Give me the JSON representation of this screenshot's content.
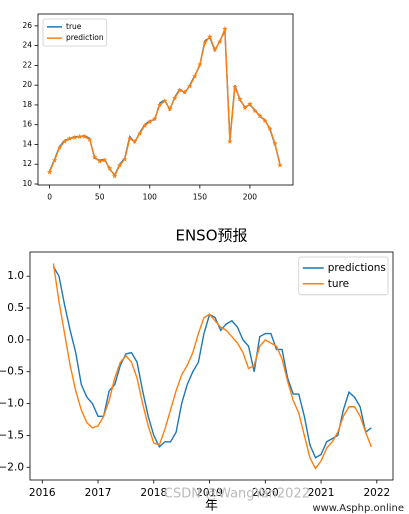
{
  "chart_data": [
    {
      "type": "line",
      "x": [
        0,
        5,
        10,
        15,
        20,
        25,
        30,
        35,
        40,
        45,
        50,
        55,
        60,
        65,
        70,
        75,
        80,
        85,
        90,
        95,
        100,
        105,
        110,
        115,
        120,
        125,
        130,
        135,
        140,
        145,
        150,
        155,
        160,
        165,
        170,
        175,
        180,
        185,
        190,
        195,
        200,
        205,
        210,
        215,
        220,
        225,
        230
      ],
      "series": [
        {
          "name": "true",
          "color": "#1f77b4",
          "values": [
            11.3,
            12.5,
            13.8,
            14.4,
            14.6,
            14.8,
            14.8,
            14.9,
            14.6,
            12.6,
            12.4,
            12.5,
            11.5,
            10.9,
            12.0,
            12.6,
            14.8,
            14.2,
            15.2,
            16.0,
            16.4,
            16.5,
            18.2,
            18.5,
            17.5,
            18.8,
            19.6,
            19.2,
            20.0,
            21.0,
            22.0,
            24.5,
            24.8,
            23.5,
            24.5,
            25.5,
            14.5,
            20.0,
            18.5,
            17.8,
            18.0,
            17.5,
            16.8,
            16.5,
            15.5,
            14.0,
            12.0
          ]
        },
        {
          "name": "prediction",
          "color": "#ff7f0e",
          "marker": "*",
          "values": [
            11.2,
            12.4,
            13.7,
            14.3,
            14.6,
            14.7,
            14.8,
            14.8,
            14.5,
            12.7,
            12.3,
            12.4,
            11.6,
            10.8,
            11.9,
            12.5,
            14.6,
            14.3,
            15.1,
            15.9,
            16.3,
            16.6,
            18.0,
            18.4,
            17.6,
            18.7,
            19.5,
            19.3,
            19.9,
            20.9,
            22.1,
            24.3,
            24.9,
            23.6,
            24.4,
            25.7,
            14.3,
            19.8,
            18.6,
            17.7,
            18.1,
            17.4,
            16.9,
            16.4,
            15.6,
            14.1,
            11.9
          ]
        }
      ],
      "xlim": [
        -11.6,
        243
      ],
      "xticks": [
        0,
        50,
        100,
        150,
        200
      ],
      "ylim": [
        9.9,
        27.2
      ],
      "yticks": [
        10,
        12,
        14,
        16,
        18,
        20,
        22,
        24,
        26
      ],
      "legend": "upper left"
    },
    {
      "type": "line",
      "title": "ENSO预报",
      "x_label": "年",
      "x": [
        2016.2,
        2016.3,
        2016.4,
        2016.5,
        2016.6,
        2016.7,
        2016.8,
        2016.9,
        2017.0,
        2017.1,
        2017.2,
        2017.3,
        2017.4,
        2017.5,
        2017.6,
        2017.7,
        2017.8,
        2017.9,
        2018.0,
        2018.1,
        2018.2,
        2018.3,
        2018.4,
        2018.5,
        2018.6,
        2018.7,
        2018.8,
        2018.9,
        2019.0,
        2019.1,
        2019.2,
        2019.3,
        2019.4,
        2019.5,
        2019.6,
        2019.7,
        2019.8,
        2019.9,
        2020.0,
        2020.1,
        2020.2,
        2020.3,
        2020.4,
        2020.5,
        2020.6,
        2020.7,
        2020.8,
        2020.9,
        2021.0,
        2021.1,
        2021.2,
        2021.3,
        2021.4,
        2021.5,
        2021.6,
        2021.7,
        2021.8,
        2021.9
      ],
      "series": [
        {
          "name": "predictions",
          "color": "#1f77b4",
          "values": [
            1.15,
            1.0,
            0.55,
            0.15,
            -0.2,
            -0.7,
            -0.9,
            -1.0,
            -1.2,
            -1.2,
            -0.8,
            -0.7,
            -0.4,
            -0.22,
            -0.2,
            -0.35,
            -0.8,
            -1.2,
            -1.5,
            -1.68,
            -1.6,
            -1.6,
            -1.45,
            -1.0,
            -0.7,
            -0.5,
            -0.35,
            0.1,
            0.4,
            0.35,
            0.15,
            0.25,
            0.3,
            0.2,
            0.0,
            -0.1,
            -0.5,
            0.05,
            0.1,
            0.1,
            -0.15,
            -0.15,
            -0.6,
            -0.85,
            -0.85,
            -1.2,
            -1.65,
            -1.85,
            -1.8,
            -1.6,
            -1.55,
            -1.5,
            -1.1,
            -0.82,
            -0.9,
            -1.05,
            -1.45,
            -1.38
          ]
        },
        {
          "name": "ture",
          "color": "#ff7f0e",
          "values": [
            1.2,
            0.6,
            0.1,
            -0.4,
            -0.8,
            -1.1,
            -1.3,
            -1.38,
            -1.35,
            -1.2,
            -0.95,
            -0.6,
            -0.35,
            -0.25,
            -0.35,
            -0.6,
            -1.0,
            -1.35,
            -1.62,
            -1.65,
            -1.4,
            -1.1,
            -0.8,
            -0.55,
            -0.4,
            -0.2,
            0.1,
            0.35,
            0.4,
            0.3,
            0.2,
            0.15,
            0.05,
            -0.05,
            -0.2,
            -0.45,
            -0.4,
            -0.1,
            0.0,
            -0.05,
            -0.1,
            -0.3,
            -0.65,
            -0.95,
            -1.15,
            -1.5,
            -1.85,
            -2.02,
            -1.9,
            -1.7,
            -1.6,
            -1.45,
            -1.2,
            -1.05,
            -1.05,
            -1.2,
            -1.45,
            -1.68
          ]
        }
      ],
      "xlim": [
        2015.78,
        2022.29
      ],
      "xticks": [
        2016,
        2017,
        2018,
        2019,
        2020,
        2021,
        2022
      ],
      "ylim": [
        -2.2,
        1.38
      ],
      "yticks": [
        {
          "value": -2,
          "label": "−2.0"
        },
        {
          "value": -1.5,
          "label": "−1.5"
        },
        {
          "value": -1,
          "label": "−1.0"
        },
        {
          "value": -0.5,
          "label": "−0.5"
        },
        {
          "value": 0,
          "label": "0.0"
        },
        {
          "value": 0.5,
          "label": "0.5"
        },
        {
          "value": 1,
          "label": "1.0"
        }
      ],
      "legend": "upper right",
      "watermarks": [
        "CSDN @WangYan2022",
        "www.Asphp.online"
      ]
    }
  ]
}
